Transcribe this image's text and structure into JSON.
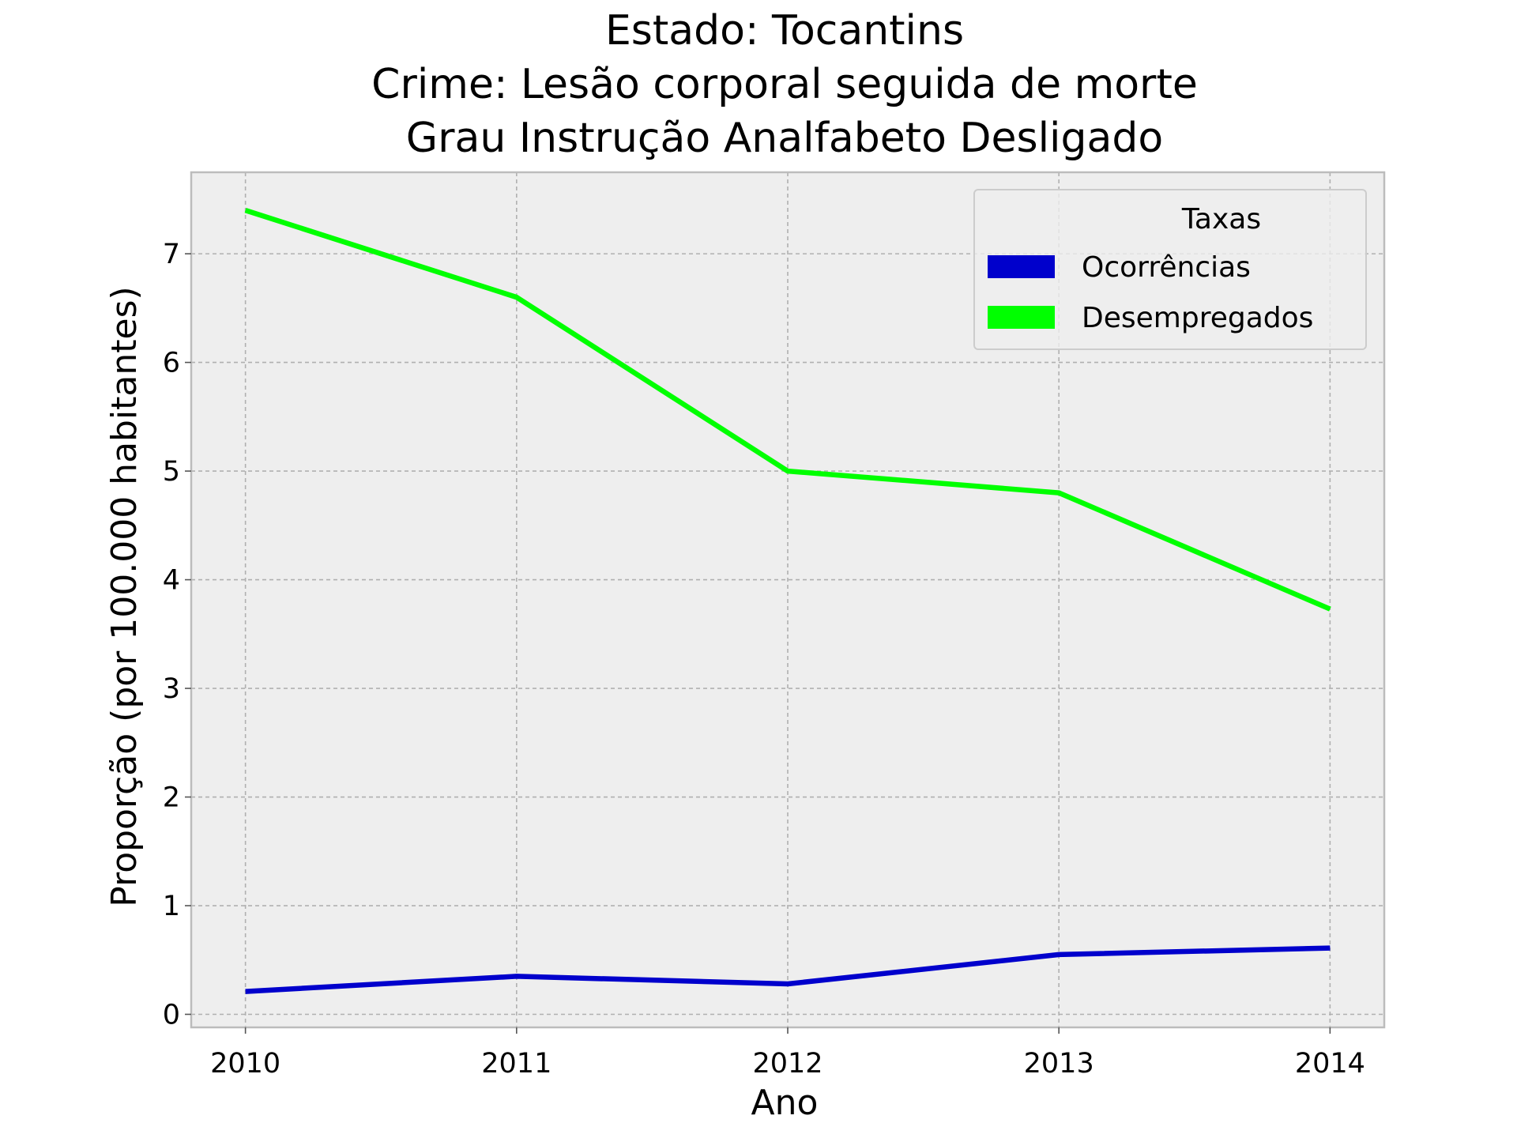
{
  "chart_data": {
    "type": "line",
    "title_lines": [
      "Estado: Tocantins",
      "Crime: Lesão corporal seguida de morte",
      "Grau Instrução  Analfabeto   Desligado"
    ],
    "xlabel": "Ano",
    "ylabel": "Proporção (por 100.000 habitantes)",
    "x": [
      2010,
      2011,
      2012,
      2013,
      2014
    ],
    "x_tick_labels": [
      "2010",
      "2011",
      "2012",
      "2013",
      "2014"
    ],
    "xlim": [
      2009.8,
      2014.2
    ],
    "y_ticks": [
      0,
      1,
      2,
      3,
      4,
      5,
      6,
      7
    ],
    "y_tick_labels": [
      "0",
      "1",
      "2",
      "3",
      "4",
      "5",
      "6",
      "7"
    ],
    "ylim": [
      -0.12,
      7.75
    ],
    "grid": true,
    "legend": {
      "title": "Taxas",
      "position": "top-right"
    },
    "series": [
      {
        "name": "Ocorrências",
        "color": "#0000cc",
        "values": [
          0.21,
          0.35,
          0.28,
          0.55,
          0.61
        ]
      },
      {
        "name": "Desempregados",
        "color": "#00ff00",
        "values": [
          7.4,
          6.6,
          5.0,
          4.8,
          3.73
        ]
      }
    ],
    "background_color": "#eeeeee",
    "frame_color": "#bcbcbc"
  }
}
